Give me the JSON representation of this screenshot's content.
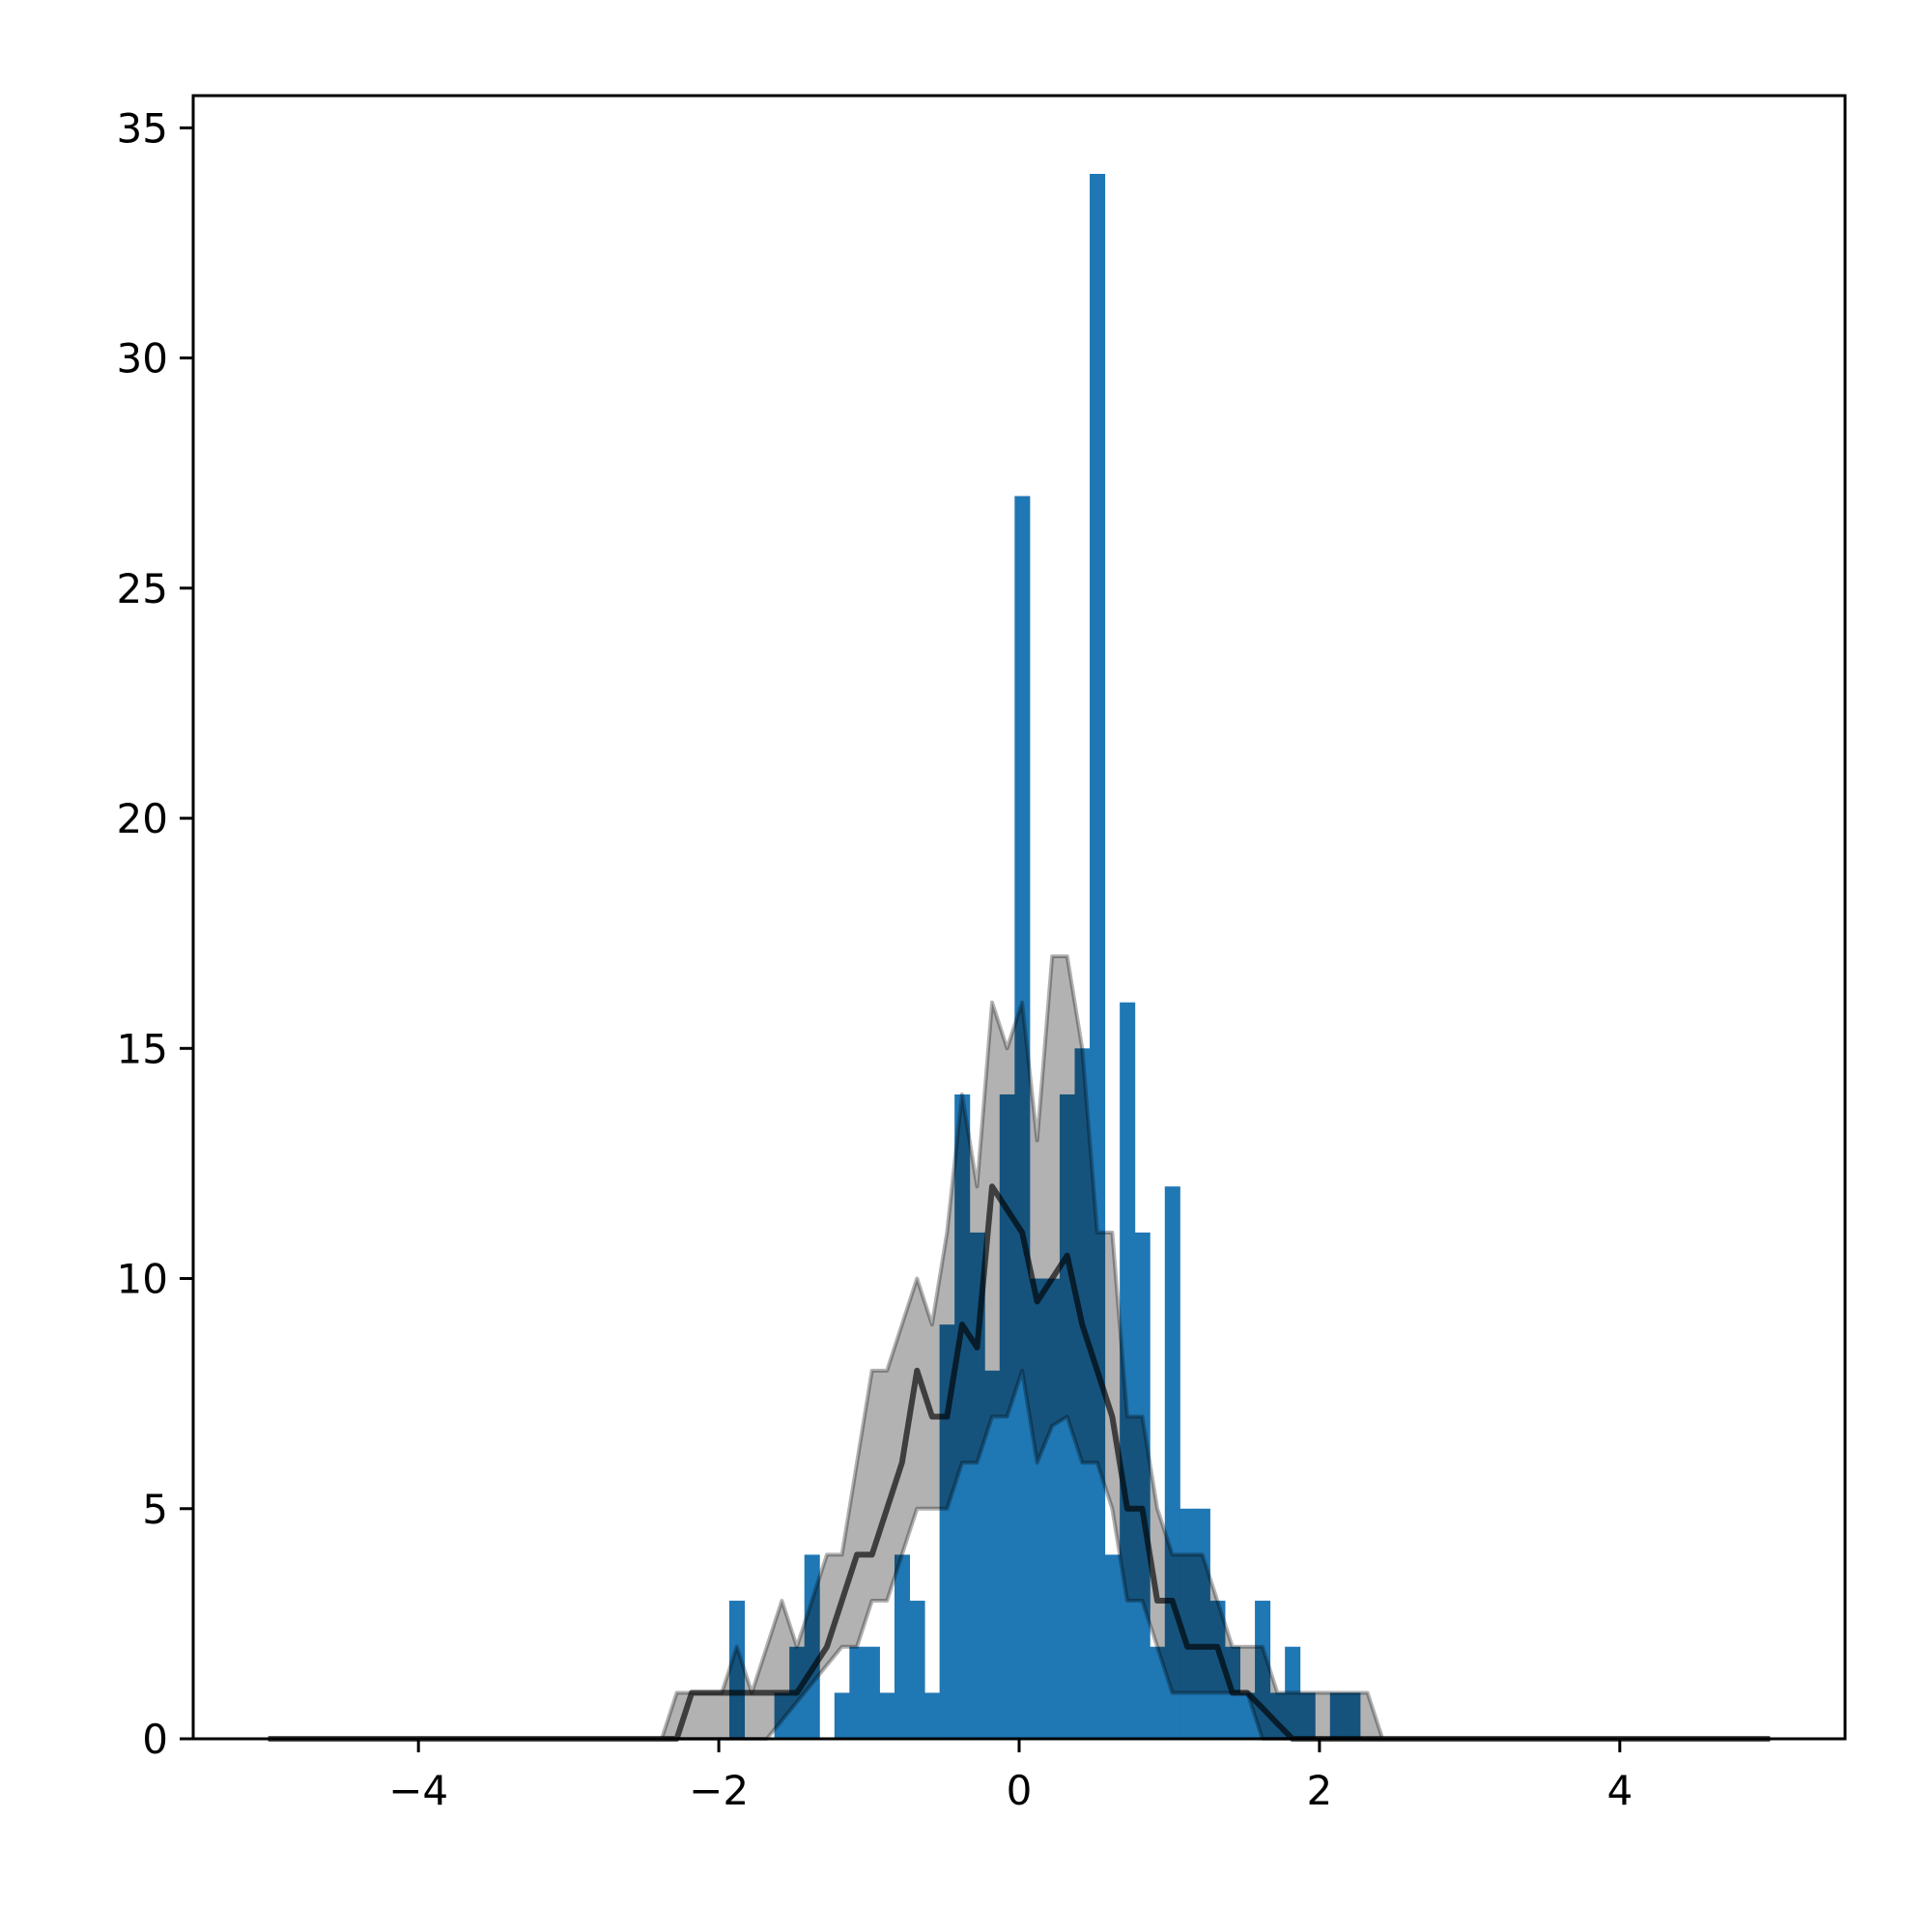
{
  "chart_data": {
    "type": "bar",
    "title": "",
    "xlabel": "",
    "ylabel": "",
    "xlim": [
      -5.5,
      5.5
    ],
    "ylim": [
      0,
      35.7
    ],
    "grid": false,
    "x_ticks": [
      -4,
      -2,
      0,
      2,
      4
    ],
    "x_tick_labels": [
      "−4",
      "−2",
      "0",
      "2",
      "4"
    ],
    "y_ticks": [
      0,
      5,
      10,
      15,
      20,
      25,
      30,
      35
    ],
    "y_tick_labels": [
      "0",
      "5",
      "10",
      "15",
      "20",
      "25",
      "30",
      "35"
    ],
    "histogram": {
      "bin_start": -1.93,
      "bin_width": 0.1,
      "counts": [
        3,
        0,
        0,
        1,
        2,
        4,
        0,
        1,
        2,
        2,
        1,
        4,
        3,
        1,
        9,
        14,
        11,
        8,
        14,
        27,
        10,
        10,
        14,
        15,
        34,
        4,
        16,
        11,
        2,
        12,
        5,
        5,
        3,
        2,
        1,
        3,
        1,
        2,
        1,
        0,
        1,
        1
      ],
      "color": "#1f77b4"
    },
    "band_and_line": {
      "x": [
        -5.0,
        -2.38,
        -2.28,
        -2.18,
        -2.08,
        -1.98,
        -1.88,
        -1.78,
        -1.68,
        -1.58,
        -1.48,
        -1.38,
        -1.28,
        -1.18,
        -1.08,
        -0.98,
        -0.88,
        -0.78,
        -0.68,
        -0.58,
        -0.48,
        -0.38,
        -0.28,
        -0.18,
        -0.08,
        0.02,
        0.12,
        0.22,
        0.32,
        0.42,
        0.52,
        0.62,
        0.72,
        0.82,
        0.92,
        1.02,
        1.12,
        1.22,
        1.32,
        1.42,
        1.52,
        1.62,
        1.72,
        1.82,
        1.92,
        2.02,
        2.12,
        2.22,
        2.32,
        2.42,
        5.0
      ],
      "mean": [
        0,
        0,
        0,
        1,
        1,
        1,
        1,
        1,
        1,
        1,
        1,
        1.5,
        2,
        3,
        4,
        4,
        5,
        6,
        8,
        7,
        7,
        9,
        8.5,
        12,
        11.5,
        11,
        9.5,
        10,
        10.5,
        9,
        8,
        7,
        5,
        5,
        3,
        3,
        2,
        2,
        2,
        1,
        1,
        0.67,
        0.33,
        0,
        0,
        0,
        0,
        0,
        0,
        0,
        0
      ],
      "upper": [
        0,
        0,
        1,
        1,
        1,
        1,
        2,
        1,
        2,
        3,
        2,
        3,
        4,
        4,
        6,
        8,
        8,
        9,
        10,
        9,
        11,
        14,
        12,
        16,
        15,
        16,
        13,
        17,
        17,
        15,
        11,
        11,
        7,
        7,
        5,
        4,
        4,
        4,
        3,
        2,
        2,
        2,
        1,
        1,
        1,
        1,
        1,
        1,
        1,
        0,
        0
      ],
      "lower": [
        0,
        0,
        0,
        0,
        0,
        0,
        0,
        0,
        0,
        0.4,
        0.8,
        1.2,
        1.6,
        2,
        2,
        3,
        3,
        4,
        5,
        5,
        5,
        6,
        6,
        7,
        7,
        8,
        6,
        6.8,
        7,
        6,
        6,
        5,
        3,
        3,
        2,
        1,
        1,
        1,
        1,
        1,
        1,
        0,
        0,
        0,
        0,
        0,
        0,
        0,
        0,
        0,
        0
      ],
      "band_color": "#000000",
      "line_color": "#000000"
    }
  }
}
